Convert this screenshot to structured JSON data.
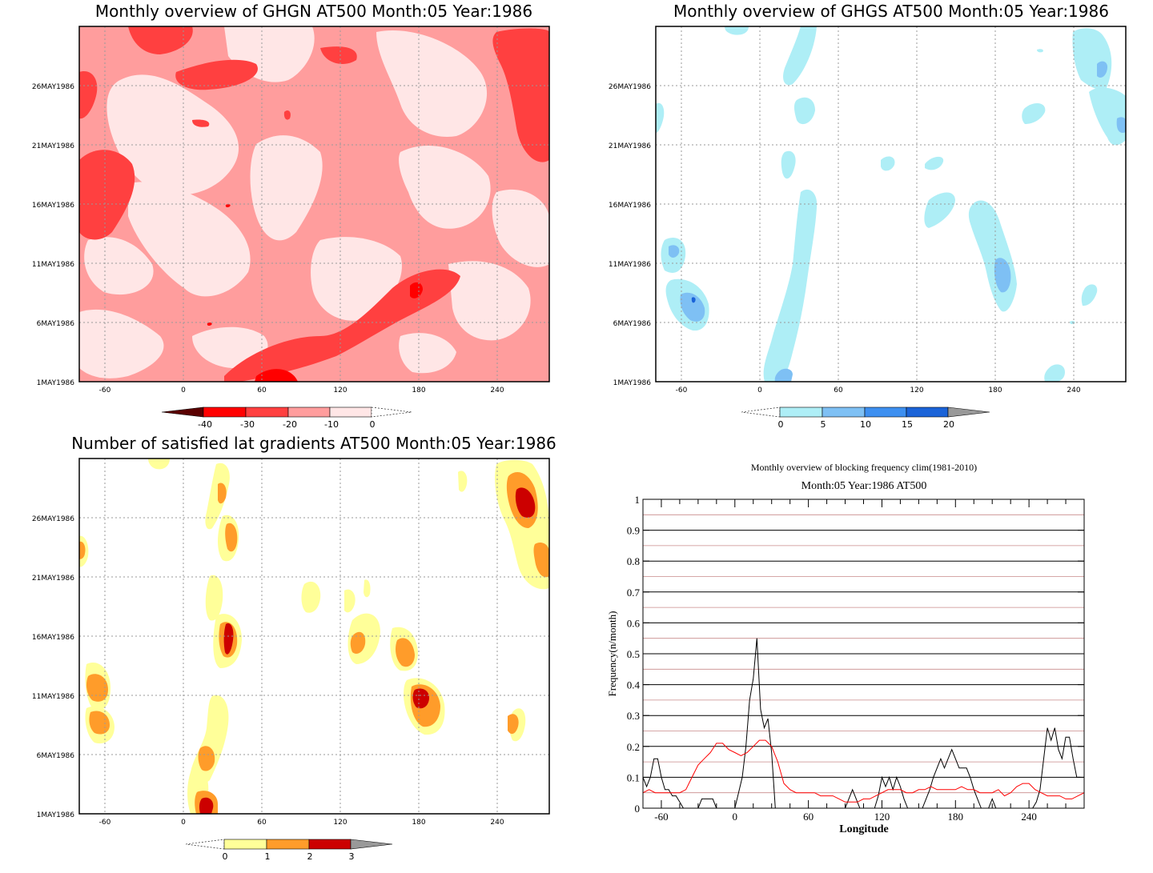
{
  "panels": {
    "ghgn": {
      "title": "Monthly overview of GHGN AT500 Month:05 Year:1986",
      "y_ticks": [
        "1MAY1986",
        "6MAY1986",
        "11MAY1986",
        "16MAY1986",
        "21MAY1986",
        "26MAY1986"
      ],
      "x_ticks": [
        "-60",
        "0",
        "60",
        "120",
        "180",
        "240"
      ],
      "colorbar": {
        "labels": [
          "-40",
          "-30",
          "-20",
          "-10",
          "0"
        ],
        "colors": [
          "#5a0000",
          "#ff0000",
          "#ff4040",
          "#ff9d9d",
          "#ffe6e6"
        ]
      }
    },
    "ghgs": {
      "title": "Monthly overview of GHGS AT500 Month:05 Year:1986",
      "y_ticks": [
        "1MAY1986",
        "6MAY1986",
        "11MAY1986",
        "16MAY1986",
        "21MAY1986",
        "26MAY1986"
      ],
      "x_ticks": [
        "-60",
        "0",
        "60",
        "120",
        "180",
        "240"
      ],
      "colorbar": {
        "labels": [
          "0",
          "5",
          "10",
          "15",
          "20"
        ],
        "colors": [
          "#aeeef6",
          "#7ec0f4",
          "#3d8ff0",
          "#1a63d8",
          "#999999"
        ]
      }
    },
    "lat": {
      "title": "Number of satisfied lat gradients AT500 Month:05 Year:1986",
      "y_ticks": [
        "1MAY1986",
        "6MAY1986",
        "11MAY1986",
        "16MAY1986",
        "21MAY1986",
        "26MAY1986"
      ],
      "x_ticks": [
        "-60",
        "0",
        "60",
        "120",
        "180",
        "240"
      ],
      "colorbar": {
        "labels": [
          "0",
          "1",
          "2",
          "3"
        ],
        "colors": [
          "#ffff99",
          "#ff9c2a",
          "#cc0000",
          "#999999"
        ]
      }
    }
  },
  "chart_data": {
    "type": "line",
    "title": "Monthly overview of blocking frequency clim(1981-2010)",
    "subtitle": "Month:05 Year:1986  AT500",
    "xlabel": "Longitude",
    "ylabel": "Frequency(n/month)",
    "xlim": [
      -75,
      285
    ],
    "ylim": [
      0,
      1
    ],
    "x_ticks": [
      "-60",
      "0",
      "60",
      "120",
      "180",
      "240"
    ],
    "y_ticks": [
      "0",
      "0.1",
      "0.2",
      "0.3",
      "0.4",
      "0.5",
      "0.6",
      "0.7",
      "0.8",
      "0.9",
      "1"
    ],
    "grid": true,
    "series": [
      {
        "color": "#000000",
        "x": [
          -75,
          -72,
          -69,
          -66,
          -63,
          -60,
          -57,
          -54,
          -51,
          -48,
          -45,
          -42,
          -39,
          -36,
          -33,
          -30,
          -27,
          -24,
          -21,
          -18,
          -15,
          -12,
          -9,
          -6,
          -3,
          0,
          3,
          6,
          9,
          12,
          15,
          18,
          21,
          24,
          27,
          30,
          33,
          36,
          39,
          42,
          45,
          48,
          51,
          54,
          57,
          60,
          63,
          66,
          69,
          72,
          75,
          78,
          81,
          84,
          87,
          90,
          93,
          96,
          99,
          102,
          105,
          108,
          111,
          114,
          117,
          120,
          123,
          126,
          129,
          132,
          135,
          138,
          141,
          144,
          147,
          150,
          153,
          156,
          159,
          162,
          165,
          168,
          171,
          174,
          177,
          180,
          183,
          186,
          189,
          192,
          195,
          198,
          201,
          204,
          207,
          210,
          213,
          216,
          219,
          222,
          225,
          228,
          231,
          234,
          237,
          240,
          243,
          246,
          249,
          252,
          255,
          258,
          261,
          264,
          267,
          270,
          273,
          276,
          279,
          282
        ],
        "y": [
          0.1,
          0.07,
          0.1,
          0.16,
          0.16,
          0.1,
          0.06,
          0.06,
          0.04,
          0.04,
          0.02,
          0,
          0,
          0,
          0,
          0,
          0.03,
          0.03,
          0.03,
          0.03,
          0,
          0,
          0,
          0,
          0,
          0,
          0.05,
          0.1,
          0.2,
          0.35,
          0.42,
          0.55,
          0.32,
          0.26,
          0.29,
          0.18,
          0,
          0,
          0,
          0,
          0,
          0,
          0,
          0,
          0,
          0,
          0,
          0,
          0,
          0,
          0,
          0,
          0,
          0,
          0,
          0,
          0.03,
          0.06,
          0.03,
          0,
          0,
          0,
          0,
          0,
          0.04,
          0.1,
          0.07,
          0.1,
          0.06,
          0.1,
          0.07,
          0.03,
          0,
          0,
          0,
          0,
          0,
          0.03,
          0.06,
          0.1,
          0.13,
          0.16,
          0.13,
          0.16,
          0.19,
          0.16,
          0.13,
          0.13,
          0.13,
          0.1,
          0.06,
          0.03,
          0,
          0,
          0,
          0.03,
          0,
          0,
          0,
          0,
          0,
          0,
          0,
          0,
          0,
          0,
          0,
          0.02,
          0.06,
          0.16,
          0.26,
          0.22,
          0.26,
          0.19,
          0.16,
          0.23,
          0.23,
          0.16,
          0.1,
          0.1
        ]
      },
      {
        "color": "#ff0000",
        "x": [
          -75,
          -70,
          -65,
          -60,
          -55,
          -50,
          -45,
          -40,
          -35,
          -30,
          -25,
          -20,
          -15,
          -10,
          -5,
          0,
          5,
          10,
          15,
          20,
          25,
          30,
          35,
          40,
          45,
          50,
          55,
          60,
          65,
          70,
          75,
          80,
          85,
          90,
          95,
          100,
          105,
          110,
          115,
          120,
          125,
          130,
          135,
          140,
          145,
          150,
          155,
          160,
          165,
          170,
          175,
          180,
          185,
          190,
          195,
          200,
          205,
          210,
          215,
          220,
          225,
          230,
          235,
          240,
          245,
          250,
          255,
          260,
          265,
          270,
          275,
          280,
          285
        ],
        "y": [
          0.05,
          0.06,
          0.05,
          0.05,
          0.05,
          0.05,
          0.05,
          0.06,
          0.1,
          0.14,
          0.16,
          0.18,
          0.21,
          0.21,
          0.19,
          0.18,
          0.17,
          0.18,
          0.2,
          0.22,
          0.22,
          0.2,
          0.15,
          0.08,
          0.06,
          0.05,
          0.05,
          0.05,
          0.05,
          0.04,
          0.04,
          0.04,
          0.03,
          0.02,
          0.02,
          0.02,
          0.03,
          0.03,
          0.04,
          0.05,
          0.06,
          0.06,
          0.06,
          0.05,
          0.05,
          0.06,
          0.06,
          0.07,
          0.06,
          0.06,
          0.06,
          0.06,
          0.07,
          0.06,
          0.06,
          0.05,
          0.05,
          0.05,
          0.06,
          0.04,
          0.05,
          0.07,
          0.08,
          0.08,
          0.06,
          0.05,
          0.04,
          0.04,
          0.04,
          0.03,
          0.03,
          0.04,
          0.05
        ]
      }
    ]
  }
}
